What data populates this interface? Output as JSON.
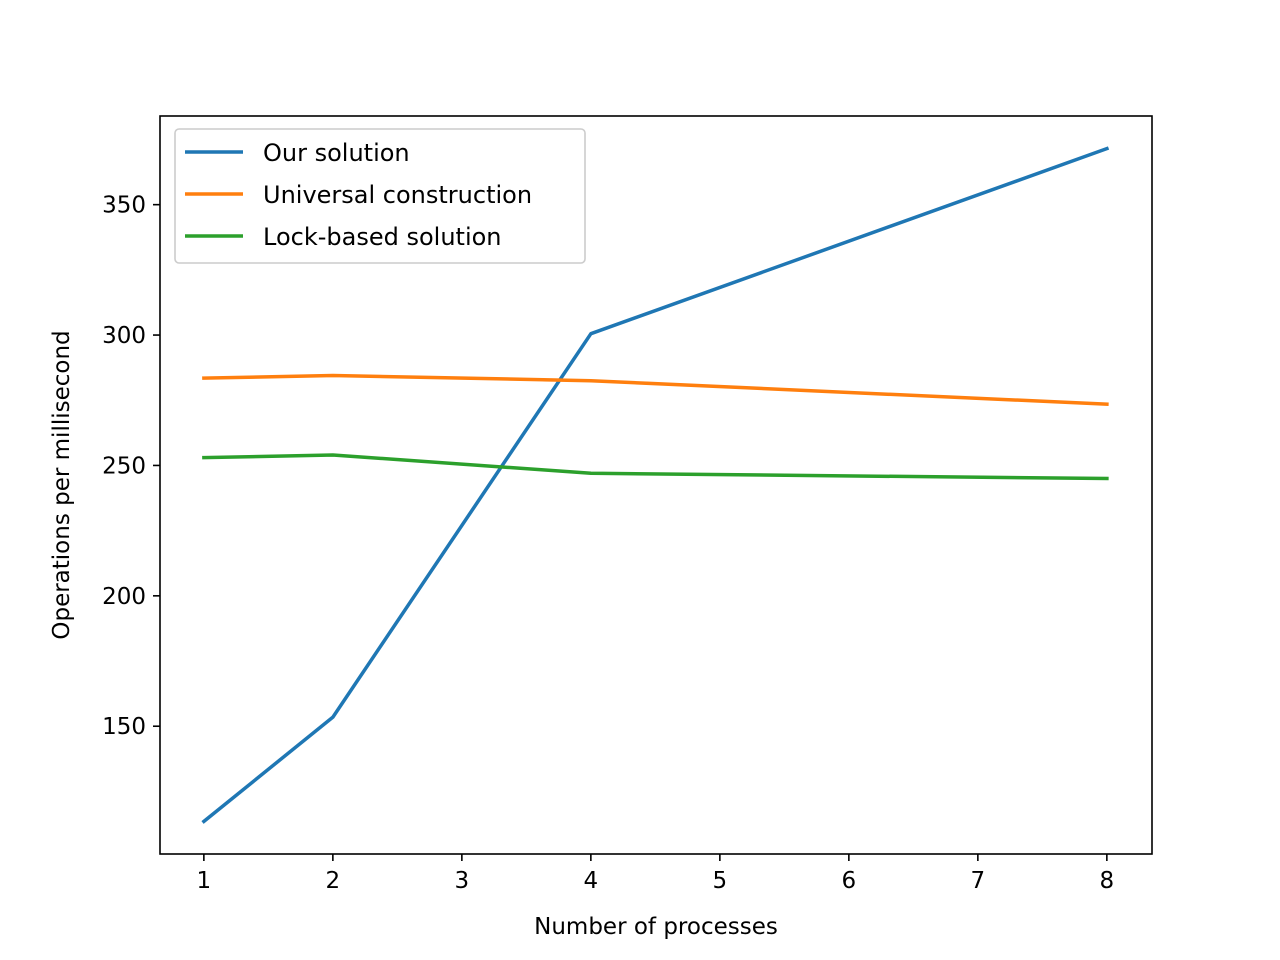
{
  "chart_data": {
    "type": "line",
    "title": "",
    "xlabel": "Number of processes",
    "ylabel": "Operations per millisecond",
    "xlim": [
      0.66,
      8.35
    ],
    "ylim": [
      101,
      384
    ],
    "xticks": [
      1,
      2,
      3,
      4,
      5,
      6,
      7,
      8
    ],
    "yticks": [
      150,
      200,
      250,
      300,
      350
    ],
    "grid": false,
    "legend_position": "top-left",
    "series": [
      {
        "name": "Our solution",
        "color": "#1f77b4",
        "x": [
          1,
          2,
          4,
          8
        ],
        "y": [
          113.5,
          153.5,
          300.5,
          371.5
        ]
      },
      {
        "name": "Universal construction",
        "color": "#ff7f0e",
        "x": [
          1,
          2,
          4,
          8
        ],
        "y": [
          283.5,
          284.5,
          282.5,
          273.5
        ]
      },
      {
        "name": "Lock-based solution",
        "color": "#2ca02c",
        "x": [
          1,
          2,
          4,
          8
        ],
        "y": [
          253,
          254,
          247,
          245
        ]
      }
    ]
  }
}
